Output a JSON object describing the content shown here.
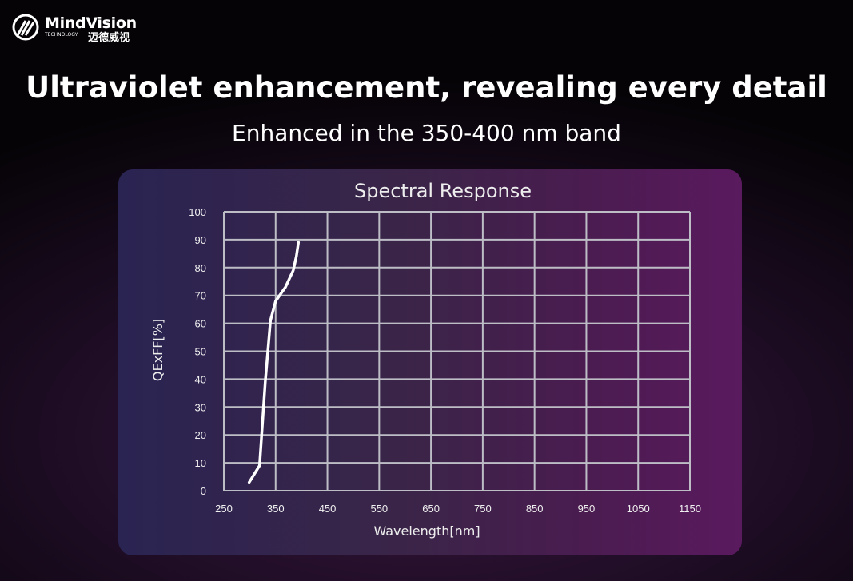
{
  "brand": {
    "name": "MindVision",
    "tagline": "TECHNOLOGY",
    "name_cn": "迈德威视"
  },
  "headline": "Ultraviolet enhancement, revealing every detail",
  "subheadline": "Enhanced in the 350-400 nm band",
  "colors": {
    "curve": "#ffffff",
    "grid": "#bdbdc6",
    "panel_left": "#2a2452",
    "panel_right": "#5a1a5e"
  },
  "chart_data": {
    "type": "line",
    "title": "Spectral Response",
    "xlabel": "Wavelength[nm]",
    "ylabel": "QExFF[%]",
    "xlim": [
      250,
      1150
    ],
    "ylim": [
      0,
      100
    ],
    "xticks": [
      250,
      350,
      450,
      550,
      650,
      750,
      850,
      950,
      1050,
      1150
    ],
    "yticks": [
      0,
      10,
      20,
      30,
      40,
      50,
      60,
      70,
      80,
      90,
      100
    ],
    "grid": true,
    "series": [
      {
        "x": [
          299,
          319,
          330,
          340,
          350,
          369,
          384,
          390,
          394
        ],
        "y": [
          3,
          9,
          39,
          61,
          68,
          73,
          79,
          84,
          89
        ]
      }
    ]
  }
}
